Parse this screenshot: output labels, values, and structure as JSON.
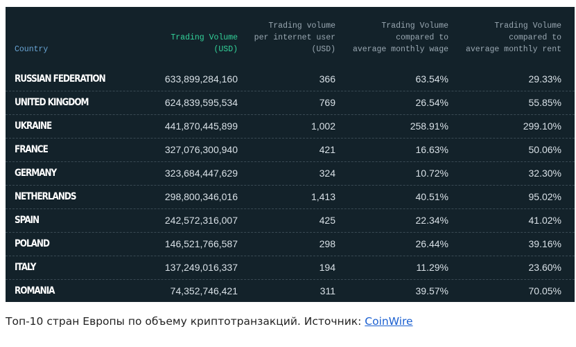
{
  "table": {
    "headers": {
      "country": "Country",
      "volume": "Trading Volume\n(USD)",
      "per_user": "Trading volume\nper internet user\n(USD)",
      "vs_wage": "Trading Volume\ncompared to\naverage monthly wage",
      "vs_rent": "Trading Volume\ncompared to\naverage monthly rent"
    },
    "rows": [
      {
        "country": "RUSSIAN FEDERATION",
        "volume": "633,899,284,160",
        "per_user": "366",
        "vs_wage": "63.54%",
        "vs_rent": "29.33%"
      },
      {
        "country": "UNITED KINGDOM",
        "volume": "624,839,595,534",
        "per_user": "769",
        "vs_wage": "26.54%",
        "vs_rent": "55.85%"
      },
      {
        "country": "UKRAINE",
        "volume": "441,870,445,899",
        "per_user": "1,002",
        "vs_wage": "258.91%",
        "vs_rent": "299.10%"
      },
      {
        "country": "FRANCE",
        "volume": "327,076,300,940",
        "per_user": "421",
        "vs_wage": "16.63%",
        "vs_rent": "50.06%"
      },
      {
        "country": "GERMANY",
        "volume": "323,684,447,629",
        "per_user": "324",
        "vs_wage": "10.72%",
        "vs_rent": "32.30%"
      },
      {
        "country": "NETHERLANDS",
        "volume": "298,800,346,016",
        "per_user": "1,413",
        "vs_wage": "40.51%",
        "vs_rent": "95.02%"
      },
      {
        "country": "SPAIN",
        "volume": "242,572,316,007",
        "per_user": "425",
        "vs_wage": "22.34%",
        "vs_rent": "41.02%"
      },
      {
        "country": "POLAND",
        "volume": "146,521,766,587",
        "per_user": "298",
        "vs_wage": "26.44%",
        "vs_rent": "39.16%"
      },
      {
        "country": "ITALY",
        "volume": "137,249,016,337",
        "per_user": "194",
        "vs_wage": "11.29%",
        "vs_rent": "23.60%"
      },
      {
        "country": "ROMANIA",
        "volume": "74,352,746,421",
        "per_user": "311",
        "vs_wage": "39.57%",
        "vs_rent": "70.05%"
      }
    ]
  },
  "caption": {
    "text": "Топ-10 стран Европы по объему криптотранзакций. Источник: ",
    "link": "CoinWire"
  },
  "colors": {
    "panel_bg": "#13222a",
    "accent_green": "#33d39a",
    "accent_blue": "#6aa6d6",
    "link": "#1a5fd0"
  }
}
